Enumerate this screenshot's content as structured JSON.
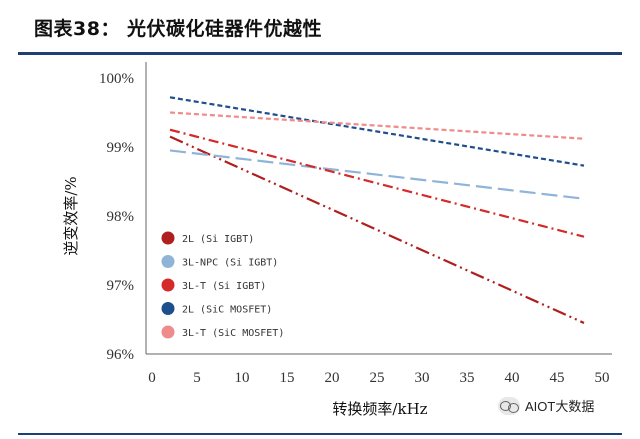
{
  "header": {
    "title": "图表38：  光伏碳化硅器件优越性"
  },
  "watermark": {
    "text": "AIOT大数据",
    "icon": "wechat-icon"
  },
  "chart_data": {
    "type": "line",
    "xlabel": "转换频率/kHz",
    "ylabel": "逆变效率/%",
    "xlim": [
      0,
      50
    ],
    "ylim": [
      96,
      100
    ],
    "xticks": [
      "0",
      "5",
      "10",
      "15",
      "20",
      "25",
      "30",
      "35",
      "40",
      "45",
      "50"
    ],
    "yticks": [
      "96%",
      "97%",
      "98%",
      "99%",
      "100%"
    ],
    "grid": false,
    "legend_position": "lower-left",
    "series": [
      {
        "name": "2L (Si IGBT)",
        "color": "#b01e1e",
        "dash": "dash-dot-dot",
        "x": [
          2,
          48
        ],
        "y": [
          99.15,
          96.45
        ]
      },
      {
        "name": "3L-NPC (Si IGBT)",
        "color": "#8fb4d8",
        "dash": "long-dash",
        "x": [
          2,
          48
        ],
        "y": [
          98.95,
          98.25
        ]
      },
      {
        "name": "3L-T (Si IGBT)",
        "color": "#d42a2a",
        "dash": "dash-dot",
        "x": [
          2,
          48
        ],
        "y": [
          99.25,
          97.7
        ]
      },
      {
        "name": "2L (SiC MOSFET)",
        "color": "#1f4e8c",
        "dash": "dash",
        "x": [
          2,
          48
        ],
        "y": [
          99.72,
          98.73
        ]
      },
      {
        "name": "3L-T (SiC MOSFET)",
        "color": "#ee8c8c",
        "dash": "dash",
        "x": [
          2,
          48
        ],
        "y": [
          99.5,
          99.12
        ]
      }
    ]
  }
}
